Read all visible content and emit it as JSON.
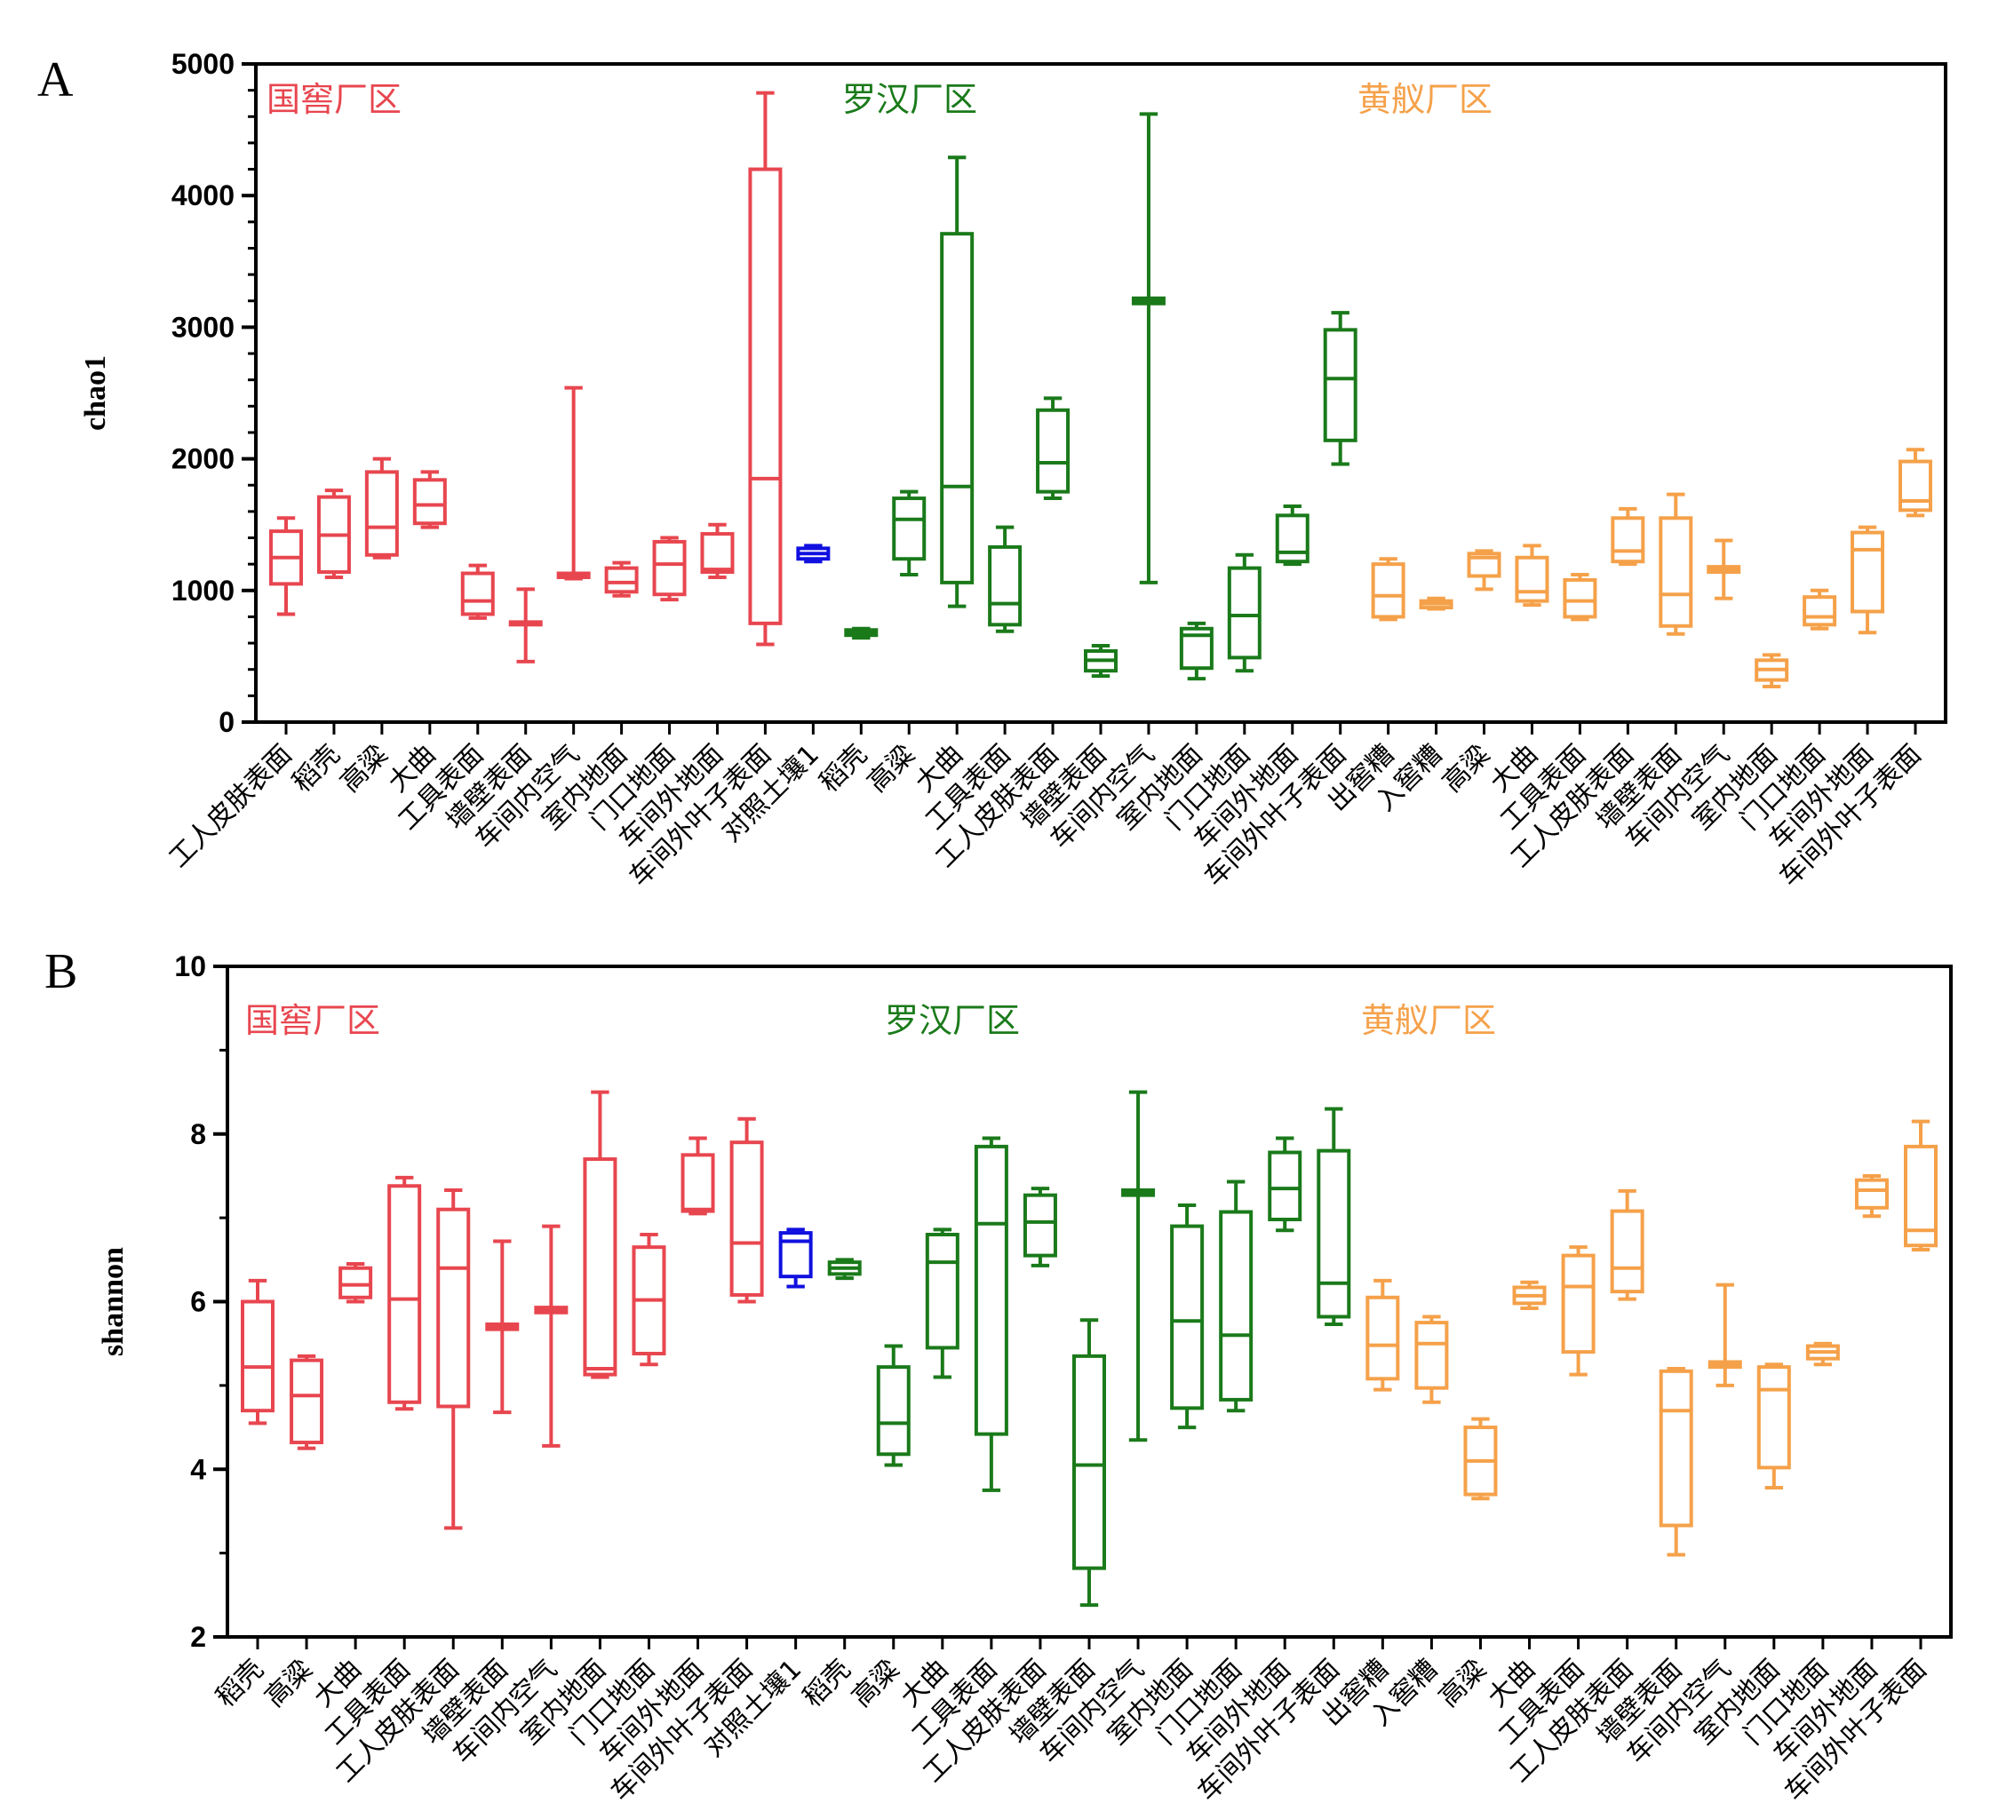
{
  "colors": {
    "guojiao": "#e8464f",
    "luohan": "#1a7a1a",
    "huangfang": "#f5a14a",
    "control": "#1010e0",
    "axis": "#000000"
  },
  "chart_data": [
    {
      "panel": "A",
      "type": "box",
      "ylabel": "chao1",
      "ylim": [
        0,
        5000
      ],
      "yticks": [
        0,
        1000,
        2000,
        3000,
        4000,
        5000
      ],
      "ytick_labels": [
        "0",
        "1000",
        "2000",
        "3000",
        "4000",
        "5000"
      ],
      "regions": [
        {
          "label": "国窖厂区",
          "color_key": "guojiao"
        },
        {
          "label": "罗汉厂区",
          "color_key": "luohan"
        },
        {
          "label": "黄舣厂区",
          "color_key": "huangfang"
        }
      ],
      "boxes": [
        {
          "label": "工人皮肤表面",
          "group": "guojiao",
          "min": 820,
          "q1": 1050,
          "median": 1250,
          "q3": 1450,
          "max": 1550
        },
        {
          "label": "稻壳",
          "group": "guojiao",
          "min": 1100,
          "q1": 1140,
          "median": 1420,
          "q3": 1710,
          "max": 1760
        },
        {
          "label": "高粱",
          "group": "guojiao",
          "min": 1250,
          "q1": 1270,
          "median": 1480,
          "q3": 1900,
          "max": 2000
        },
        {
          "label": "大曲",
          "group": "guojiao",
          "min": 1480,
          "q1": 1510,
          "median": 1650,
          "q3": 1840,
          "max": 1900
        },
        {
          "label": "工具表面",
          "group": "guojiao",
          "min": 790,
          "q1": 820,
          "median": 920,
          "q3": 1130,
          "max": 1190
        },
        {
          "label": "墙壁表面",
          "group": "guojiao",
          "min": 460,
          "q1": 740,
          "median": 750,
          "q3": 760,
          "max": 1010
        },
        {
          "label": "车间内空气",
          "group": "guojiao",
          "min": 1090,
          "q1": 1100,
          "median": 1120,
          "q3": 1130,
          "max": 2540
        },
        {
          "label": "室内地面",
          "group": "guojiao",
          "min": 960,
          "q1": 990,
          "median": 1060,
          "q3": 1170,
          "max": 1210
        },
        {
          "label": "门口地面",
          "group": "guojiao",
          "min": 930,
          "q1": 970,
          "median": 1200,
          "q3": 1370,
          "max": 1400
        },
        {
          "label": "车间外地面",
          "group": "guojiao",
          "min": 1100,
          "q1": 1140,
          "median": 1160,
          "q3": 1430,
          "max": 1500
        },
        {
          "label": "车间外叶子表面",
          "group": "guojiao",
          "min": 590,
          "q1": 750,
          "median": 1850,
          "q3": 4200,
          "max": 4780
        },
        {
          "label": "对照土壤1",
          "group": "control",
          "min": 1220,
          "q1": 1240,
          "median": 1280,
          "q3": 1320,
          "max": 1340
        },
        {
          "label": "稻壳",
          "group": "luohan",
          "min": 640,
          "q1": 660,
          "median": 680,
          "q3": 700,
          "max": 710
        },
        {
          "label": "高粱",
          "group": "luohan",
          "min": 1120,
          "q1": 1240,
          "median": 1540,
          "q3": 1700,
          "max": 1750
        },
        {
          "label": "大曲",
          "group": "luohan",
          "min": 880,
          "q1": 1060,
          "median": 1790,
          "q3": 3710,
          "max": 4290
        },
        {
          "label": "工具表面",
          "group": "luohan",
          "min": 690,
          "q1": 740,
          "median": 900,
          "q3": 1330,
          "max": 1480
        },
        {
          "label": "工人皮肤表面",
          "group": "luohan",
          "min": 1700,
          "q1": 1750,
          "median": 1970,
          "q3": 2370,
          "max": 2460
        },
        {
          "label": "墙壁表面",
          "group": "luohan",
          "min": 350,
          "q1": 390,
          "median": 470,
          "q3": 540,
          "max": 580
        },
        {
          "label": "车间内空气",
          "group": "luohan",
          "min": 1060,
          "q1": 3180,
          "median": 3200,
          "q3": 3220,
          "max": 4620
        },
        {
          "label": "室内地面",
          "group": "luohan",
          "min": 330,
          "q1": 410,
          "median": 660,
          "q3": 710,
          "max": 750
        },
        {
          "label": "门口地面",
          "group": "luohan",
          "min": 390,
          "q1": 490,
          "median": 810,
          "q3": 1170,
          "max": 1270
        },
        {
          "label": "车间外地面",
          "group": "luohan",
          "min": 1200,
          "q1": 1220,
          "median": 1290,
          "q3": 1570,
          "max": 1640
        },
        {
          "label": "车间外叶子表面",
          "group": "luohan",
          "min": 1960,
          "q1": 2140,
          "median": 2610,
          "q3": 2980,
          "max": 3110
        },
        {
          "label": "出窖糟",
          "group": "huangfang",
          "min": 780,
          "q1": 800,
          "median": 960,
          "q3": 1200,
          "max": 1240
        },
        {
          "label": "入窖糟",
          "group": "huangfang",
          "min": 860,
          "q1": 870,
          "median": 900,
          "q3": 920,
          "max": 940
        },
        {
          "label": "高粱",
          "group": "huangfang",
          "min": 1010,
          "q1": 1110,
          "median": 1250,
          "q3": 1280,
          "max": 1300
        },
        {
          "label": "大曲",
          "group": "huangfang",
          "min": 890,
          "q1": 920,
          "median": 990,
          "q3": 1250,
          "max": 1340
        },
        {
          "label": "工具表面",
          "group": "huangfang",
          "min": 780,
          "q1": 800,
          "median": 920,
          "q3": 1080,
          "max": 1120
        },
        {
          "label": "工人皮肤表面",
          "group": "huangfang",
          "min": 1200,
          "q1": 1220,
          "median": 1300,
          "q3": 1550,
          "max": 1620
        },
        {
          "label": "墙壁表面",
          "group": "huangfang",
          "min": 670,
          "q1": 730,
          "median": 970,
          "q3": 1550,
          "max": 1730
        },
        {
          "label": "车间内空气",
          "group": "huangfang",
          "min": 940,
          "q1": 1140,
          "median": 1160,
          "q3": 1180,
          "max": 1380
        },
        {
          "label": "室内地面",
          "group": "huangfang",
          "min": 270,
          "q1": 320,
          "median": 400,
          "q3": 470,
          "max": 510
        },
        {
          "label": "门口地面",
          "group": "huangfang",
          "min": 710,
          "q1": 740,
          "median": 800,
          "q3": 950,
          "max": 1000
        },
        {
          "label": "车间外地面",
          "group": "huangfang",
          "min": 680,
          "q1": 840,
          "median": 1310,
          "q3": 1440,
          "max": 1480
        },
        {
          "label": "车间外叶子表面",
          "group": "huangfang",
          "min": 1570,
          "q1": 1610,
          "median": 1680,
          "q3": 1980,
          "max": 2070
        }
      ]
    },
    {
      "panel": "B",
      "type": "box",
      "ylabel": "shannon",
      "ylim": [
        2,
        10
      ],
      "yticks": [
        2,
        4,
        6,
        8,
        10
      ],
      "ytick_labels": [
        "2",
        "4",
        "6",
        "8",
        "10"
      ],
      "regions": [
        {
          "label": "国窖厂区",
          "color_key": "guojiao"
        },
        {
          "label": "罗汉厂区",
          "color_key": "luohan"
        },
        {
          "label": "黄舣厂区",
          "color_key": "huangfang"
        }
      ],
      "boxes": [
        {
          "label": "稻壳",
          "group": "guojiao",
          "min": 4.55,
          "q1": 4.7,
          "median": 5.22,
          "q3": 6.0,
          "max": 6.25
        },
        {
          "label": "高粱",
          "group": "guojiao",
          "min": 4.25,
          "q1": 4.32,
          "median": 4.88,
          "q3": 5.3,
          "max": 5.35
        },
        {
          "label": "大曲",
          "group": "guojiao",
          "min": 6.0,
          "q1": 6.05,
          "median": 6.2,
          "q3": 6.4,
          "max": 6.45
        },
        {
          "label": "工具表面",
          "group": "guojiao",
          "min": 4.72,
          "q1": 4.8,
          "median": 6.03,
          "q3": 7.38,
          "max": 7.48
        },
        {
          "label": "工人皮肤表面",
          "group": "guojiao",
          "min": 3.3,
          "q1": 4.75,
          "median": 6.4,
          "q3": 7.1,
          "max": 7.33
        },
        {
          "label": "墙壁表面",
          "group": "guojiao",
          "min": 4.68,
          "q1": 5.67,
          "median": 5.7,
          "q3": 5.73,
          "max": 6.72
        },
        {
          "label": "车间内空气",
          "group": "guojiao",
          "min": 4.28,
          "q1": 5.87,
          "median": 5.9,
          "q3": 5.93,
          "max": 6.9
        },
        {
          "label": "室内地面",
          "group": "guojiao",
          "min": 5.1,
          "q1": 5.13,
          "median": 5.2,
          "q3": 7.7,
          "max": 8.5
        },
        {
          "label": "门口地面",
          "group": "guojiao",
          "min": 5.25,
          "q1": 5.38,
          "median": 6.02,
          "q3": 6.65,
          "max": 6.8
        },
        {
          "label": "车间外地面",
          "group": "guojiao",
          "min": 7.05,
          "q1": 7.08,
          "median": 7.1,
          "q3": 7.75,
          "max": 7.95
        },
        {
          "label": "车间外叶子表面",
          "group": "guojiao",
          "min": 6.0,
          "q1": 6.08,
          "median": 6.7,
          "q3": 7.9,
          "max": 8.18
        },
        {
          "label": "对照土壤1",
          "group": "control",
          "min": 6.18,
          "q1": 6.3,
          "median": 6.72,
          "q3": 6.82,
          "max": 6.86
        },
        {
          "label": "稻壳",
          "group": "luohan",
          "min": 6.28,
          "q1": 6.33,
          "median": 6.4,
          "q3": 6.47,
          "max": 6.5
        },
        {
          "label": "高粱",
          "group": "luohan",
          "min": 4.05,
          "q1": 4.18,
          "median": 4.55,
          "q3": 5.22,
          "max": 5.47
        },
        {
          "label": "大曲",
          "group": "luohan",
          "min": 5.1,
          "q1": 5.45,
          "median": 6.47,
          "q3": 6.8,
          "max": 6.86
        },
        {
          "label": "工具表面",
          "group": "luohan",
          "min": 3.75,
          "q1": 4.42,
          "median": 6.93,
          "q3": 7.85,
          "max": 7.95
        },
        {
          "label": "工人皮肤表面",
          "group": "luohan",
          "min": 6.43,
          "q1": 6.55,
          "median": 6.95,
          "q3": 7.27,
          "max": 7.35
        },
        {
          "label": "墙壁表面",
          "group": "luohan",
          "min": 2.38,
          "q1": 2.82,
          "median": 4.05,
          "q3": 5.35,
          "max": 5.78
        },
        {
          "label": "车间内空气",
          "group": "luohan",
          "min": 4.35,
          "q1": 7.27,
          "median": 7.3,
          "q3": 7.33,
          "max": 8.5
        },
        {
          "label": "室内地面",
          "group": "luohan",
          "min": 4.5,
          "q1": 4.73,
          "median": 5.77,
          "q3": 6.9,
          "max": 7.15
        },
        {
          "label": "门口地面",
          "group": "luohan",
          "min": 4.7,
          "q1": 4.83,
          "median": 5.6,
          "q3": 7.07,
          "max": 7.43
        },
        {
          "label": "车间外地面",
          "group": "luohan",
          "min": 6.85,
          "q1": 6.98,
          "median": 7.35,
          "q3": 7.78,
          "max": 7.95
        },
        {
          "label": "车间外叶子表面",
          "group": "luohan",
          "min": 5.73,
          "q1": 5.82,
          "median": 6.22,
          "q3": 7.8,
          "max": 8.3
        },
        {
          "label": "出窖糟",
          "group": "huangfang",
          "min": 4.95,
          "q1": 5.08,
          "median": 5.48,
          "q3": 6.05,
          "max": 6.25
        },
        {
          "label": "入窖糟",
          "group": "huangfang",
          "min": 4.8,
          "q1": 4.97,
          "median": 5.5,
          "q3": 5.75,
          "max": 5.82
        },
        {
          "label": "高粱",
          "group": "huangfang",
          "min": 3.65,
          "q1": 3.7,
          "median": 4.1,
          "q3": 4.5,
          "max": 4.6
        },
        {
          "label": "大曲",
          "group": "huangfang",
          "min": 5.92,
          "q1": 5.98,
          "median": 6.07,
          "q3": 6.17,
          "max": 6.23
        },
        {
          "label": "工具表面",
          "group": "huangfang",
          "min": 5.13,
          "q1": 5.4,
          "median": 6.18,
          "q3": 6.55,
          "max": 6.65
        },
        {
          "label": "工人皮肤表面",
          "group": "huangfang",
          "min": 6.03,
          "q1": 6.12,
          "median": 6.4,
          "q3": 7.08,
          "max": 7.32
        },
        {
          "label": "墙壁表面",
          "group": "huangfang",
          "min": 2.98,
          "q1": 3.33,
          "median": 4.7,
          "q3": 5.17,
          "max": 5.2
        },
        {
          "label": "车间内空气",
          "group": "huangfang",
          "min": 5.0,
          "q1": 5.22,
          "median": 5.25,
          "q3": 5.28,
          "max": 6.2
        },
        {
          "label": "室内地面",
          "group": "huangfang",
          "min": 3.78,
          "q1": 4.02,
          "median": 4.95,
          "q3": 5.22,
          "max": 5.25
        },
        {
          "label": "门口地面",
          "group": "huangfang",
          "min": 5.25,
          "q1": 5.32,
          "median": 5.4,
          "q3": 5.47,
          "max": 5.5
        },
        {
          "label": "车间外地面",
          "group": "huangfang",
          "min": 7.02,
          "q1": 7.12,
          "median": 7.33,
          "q3": 7.45,
          "max": 7.5
        },
        {
          "label": "车间外叶子表面",
          "group": "huangfang",
          "min": 6.62,
          "q1": 6.67,
          "median": 6.85,
          "q3": 7.85,
          "max": 8.15
        }
      ]
    }
  ]
}
